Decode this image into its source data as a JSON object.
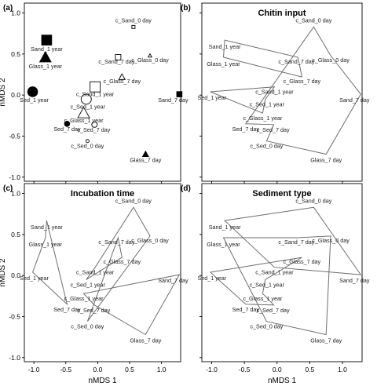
{
  "chart_data": {
    "type": "scatter",
    "xlabel": "nMDS 1",
    "ylabel": "nMDS 2",
    "xlim": [
      -1.15,
      1.3
    ],
    "ylim": [
      -1.05,
      1.12
    ],
    "xticks": [
      "-1.0",
      "-0.5",
      "0.0",
      "0.5",
      "1.0"
    ],
    "yticks": [
      "1.0",
      "0.5",
      "0.0",
      "-0.5",
      "-1.0"
    ],
    "points": [
      {
        "name": "c_Sand_0 day",
        "x": 0.56,
        "y": 0.83
      },
      {
        "name": "c_Glass_0 day",
        "x": 0.82,
        "y": 0.48
      },
      {
        "name": "c_Sand_7 day",
        "x": 0.32,
        "y": 0.46
      },
      {
        "name": "c_Glass_7 day",
        "x": 0.38,
        "y": 0.22
      },
      {
        "name": "Sand_7 day",
        "x": 1.28,
        "y": 0.01
      },
      {
        "name": "Glass_7 day",
        "x": 0.75,
        "y": -0.72
      },
      {
        "name": "c_Sed_0 day",
        "x": -0.16,
        "y": -0.56
      },
      {
        "name": "Sed_7 day",
        "x": -0.48,
        "y": -0.35
      },
      {
        "name": "c_Sed_7 day",
        "x": -0.05,
        "y": -0.36
      },
      {
        "name": "c_Glass_1 year",
        "x": -0.22,
        "y": -0.22
      },
      {
        "name": "c_Sed_1 year",
        "x": -0.18,
        "y": -0.05
      },
      {
        "name": "c_Sand_1 year",
        "x": -0.04,
        "y": 0.1
      },
      {
        "name": "Sed_1 year",
        "x": -1.02,
        "y": 0.04
      },
      {
        "name": "Glass_1 year",
        "x": -0.82,
        "y": 0.46
      },
      {
        "name": "Sand_1 year",
        "x": -0.8,
        "y": 0.67
      }
    ],
    "panels": [
      {
        "label": "(a)",
        "title": "",
        "type": "scatter",
        "markers": [
          {
            "point": "Sand_1 year",
            "shape": "square",
            "filled": true,
            "size": 6.5
          },
          {
            "point": "Glass_1 year",
            "shape": "triangle",
            "filled": true,
            "size": 6.5
          },
          {
            "point": "Sed_1 year",
            "shape": "circle",
            "filled": true,
            "size": 6.5
          },
          {
            "point": "c_Sand_1 year",
            "shape": "square",
            "filled": false,
            "size": 6.5
          },
          {
            "point": "c_Glass_1 year",
            "shape": "triangle",
            "filled": false,
            "size": 6.5
          },
          {
            "point": "c_Sed_1 year",
            "shape": "circle",
            "filled": false,
            "size": 6.5
          },
          {
            "point": "Sand_7 day",
            "shape": "square",
            "filled": true,
            "size": 3.5
          },
          {
            "point": "Glass_7 day",
            "shape": "triangle",
            "filled": true,
            "size": 3.5
          },
          {
            "point": "Sed_7 day",
            "shape": "circle",
            "filled": true,
            "size": 3.5
          },
          {
            "point": "c_Sand_7 day",
            "shape": "square",
            "filled": false,
            "size": 3.5
          },
          {
            "point": "c_Glass_7 day",
            "shape": "triangle",
            "filled": false,
            "size": 3.5
          },
          {
            "point": "c_Sed_7 day",
            "shape": "circle",
            "filled": false,
            "size": 3.5
          },
          {
            "point": "c_Sand_0 day",
            "shape": "square",
            "filled": false,
            "size": 2
          },
          {
            "point": "c_Glass_0 day",
            "shape": "triangle",
            "filled": false,
            "size": 2
          },
          {
            "point": "c_Sed_0 day",
            "shape": "circle",
            "filled": false,
            "size": 2
          }
        ]
      },
      {
        "label": "(b)",
        "title": "Chitin input",
        "type": "hull",
        "groups": [
          [
            "c_Sand_0 day",
            "c_Glass_0 day",
            "Sand_7 day",
            "Glass_7 day",
            "c_Sed_0 day",
            "c_Sed_7 day",
            "Sed_7 day"
          ],
          [
            "c_Sand_7 day",
            "c_Glass_7 day",
            "Glass_1 year",
            "Sand_1 year"
          ],
          [
            "c_Glass_1 year",
            "c_Sed_1 year",
            "c_Sand_1 year",
            "Sed_1 year"
          ]
        ]
      },
      {
        "label": "(c)",
        "title": "Incubation time",
        "type": "hull",
        "groups": [
          [
            "c_Sand_0 day",
            "c_Glass_0 day",
            "c_Sed_0 day",
            "c_Sand_7 day",
            "c_Glass_7 day",
            "c_Sed_1 year",
            "c_Sand_1 year"
          ],
          [
            "Sand_7 day",
            "Glass_7 day",
            "c_Sed_7 day",
            "c_Glass_1 year"
          ],
          [
            "Sand_1 year",
            "Glass_1 year",
            "Sed_1 year",
            "Sed_7 day"
          ]
        ]
      },
      {
        "label": "(d)",
        "title": "Sediment type",
        "type": "hull",
        "groups": [
          [
            "c_Sand_0 day",
            "Sand_7 day",
            "c_Sand_1 year",
            "Sand_1 year"
          ],
          [
            "c_Glass_0 day",
            "Glass_7 day",
            "c_Sed_0 day",
            "Glass_1 year",
            "c_Sand_7 day"
          ],
          [
            "Sed_1 year",
            "c_Glass_7 day",
            "c_Sed_1 year",
            "c_Glass_1 year",
            "c_Sed_7 day",
            "Sed_7 day"
          ]
        ]
      }
    ]
  }
}
